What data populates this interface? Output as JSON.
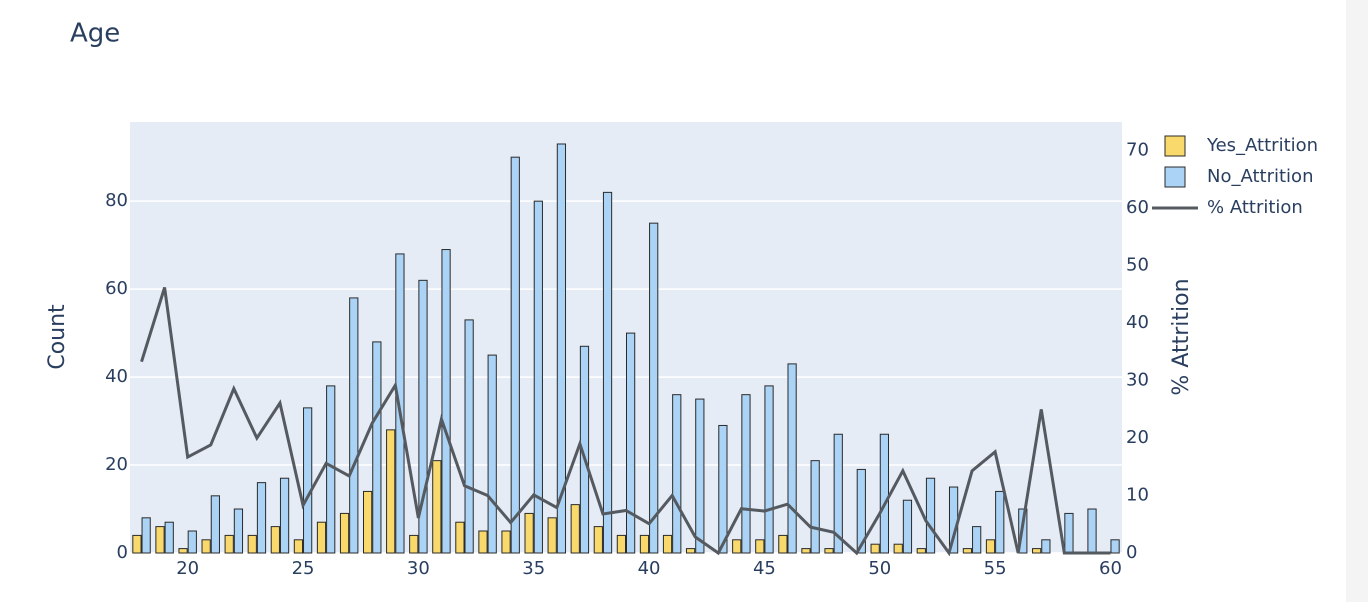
{
  "chart_data": {
    "type": "bar",
    "title": "Age",
    "y_title": "Count",
    "y2_title": "% Attrition",
    "x": [
      18,
      19,
      20,
      21,
      22,
      23,
      24,
      25,
      26,
      27,
      28,
      29,
      30,
      31,
      32,
      33,
      34,
      35,
      36,
      37,
      38,
      39,
      40,
      41,
      42,
      43,
      44,
      45,
      46,
      47,
      48,
      49,
      50,
      51,
      52,
      53,
      54,
      55,
      56,
      57,
      58,
      59,
      60
    ],
    "series": [
      {
        "name": "Yes_Attrition",
        "type": "bar",
        "color": "#f9d96b",
        "values": [
          4,
          6,
          1,
          3,
          4,
          4,
          6,
          3,
          7,
          9,
          14,
          28,
          4,
          21,
          7,
          5,
          5,
          9,
          8,
          11,
          6,
          4,
          4,
          4,
          1,
          0,
          3,
          3,
          4,
          1,
          1,
          0,
          2,
          2,
          1,
          0,
          1,
          3,
          0,
          1,
          0,
          0,
          0
        ]
      },
      {
        "name": "No_Attrition",
        "type": "bar",
        "color": "#aad3f5",
        "values": [
          8,
          7,
          5,
          13,
          10,
          16,
          17,
          33,
          38,
          58,
          48,
          68,
          62,
          69,
          53,
          45,
          90,
          80,
          93,
          47,
          82,
          50,
          75,
          36,
          35,
          29,
          36,
          38,
          43,
          21,
          27,
          19,
          27,
          12,
          17,
          15,
          6,
          14,
          10,
          3,
          9,
          10,
          3
        ]
      },
      {
        "name": "% Attrition",
        "type": "line",
        "axis": "y2",
        "color": "#555a60",
        "values": [
          33.3,
          46.2,
          16.7,
          18.8,
          28.6,
          20,
          26.1,
          8.3,
          15.6,
          13.4,
          22.6,
          29.2,
          6.1,
          23.3,
          11.7,
          10,
          5.3,
          10.1,
          7.9,
          19,
          6.8,
          7.4,
          5.1,
          10,
          2.8,
          0,
          7.7,
          7.3,
          8.5,
          4.5,
          3.6,
          0,
          6.9,
          14.3,
          5.6,
          0,
          14.3,
          17.6,
          0,
          25,
          0,
          0,
          0
        ]
      }
    ],
    "xlim": [
      17.5,
      60.5
    ],
    "xticks": [
      20,
      25,
      30,
      35,
      40,
      45,
      50,
      55,
      60
    ],
    "ylim": [
      0,
      98
    ],
    "yticks": [
      0,
      20,
      40,
      60,
      80
    ],
    "y2lim": [
      0,
      75
    ],
    "y2ticks": [
      0,
      10,
      20,
      30,
      40,
      50,
      60,
      70
    ],
    "grid": true,
    "legend": "top-right"
  }
}
